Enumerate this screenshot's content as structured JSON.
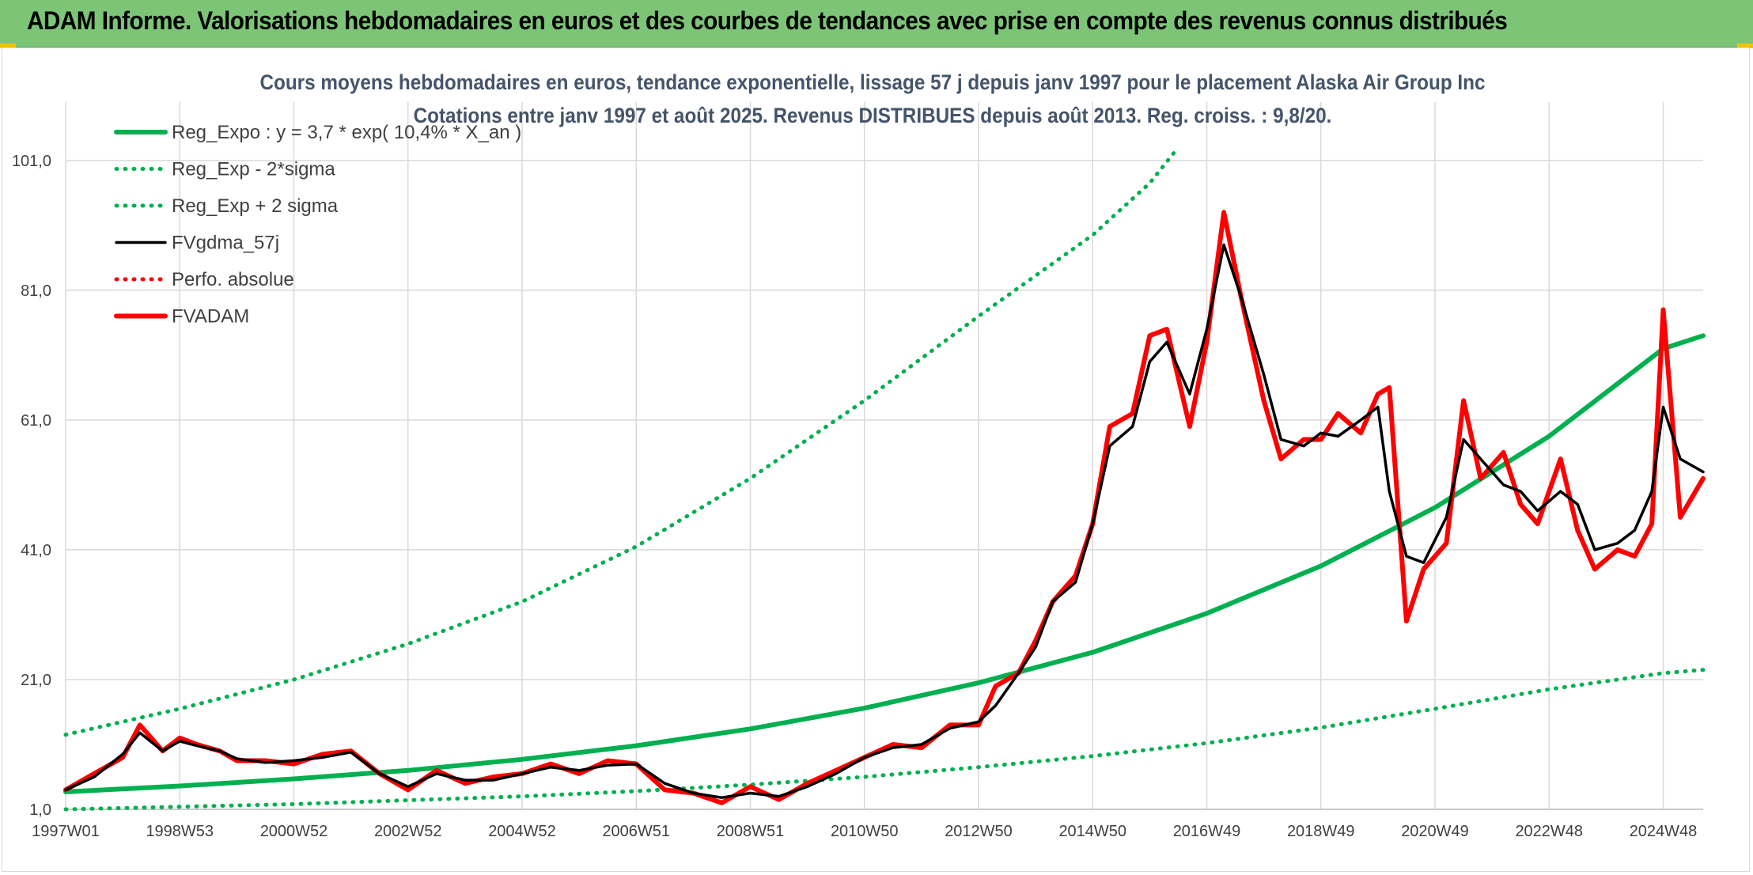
{
  "banner": {
    "title": "ADAM Informe. Valorisations hebdomadaires en euros et des courbes de tendances avec prise en compte des revenus connus distribués"
  },
  "colors": {
    "banner_bg": "#7cc576",
    "trend_green": "#00b050",
    "smooth_black": "#000000",
    "price_red": "#ff0000",
    "title_text": "#44546a",
    "grid": "#d9d9d9"
  },
  "chart_data": {
    "type": "line",
    "title": "Cours moyens hebdomadaires en euros, tendance exponentielle, lissage 57 j depuis janv 1997 pour le placement Alaska Air Group Inc",
    "subtitle": "Cotations entre janv 1997 et août 2025. Revenus DISTRIBUES depuis août 2013. Reg. croiss. : 9,8/20.",
    "xlabel": "",
    "ylabel": "",
    "ylim": [
      1.0,
      110.0
    ],
    "yticks": [
      "1,0",
      "21,0",
      "41,0",
      "61,0",
      "81,0",
      "101,0"
    ],
    "ytick_values": [
      1,
      21,
      41,
      61,
      81,
      101
    ],
    "xlim": [
      1997.0,
      2025.7
    ],
    "x_tick_labels": [
      "1997W01",
      "1998W53",
      "2000W52",
      "2002W52",
      "2004W52",
      "2006W51",
      "2008W51",
      "2010W50",
      "2012W50",
      "2014W50",
      "2016W49",
      "2018W49",
      "2020W49",
      "2022W48",
      "2024W48"
    ],
    "x_tick_values": [
      1997.0,
      1999.0,
      2001.0,
      2003.0,
      2005.0,
      2007.0,
      2009.0,
      2011.0,
      2013.0,
      2015.0,
      2017.0,
      2019.0,
      2021.0,
      2023.0,
      2025.0
    ],
    "grid": "vertical and horizontal",
    "legend_placement": "top-left",
    "legend": [
      {
        "name": "Reg_Expo : y = 3,7 * exp( 10,4% *  X_an )",
        "style": "solid-thick",
        "color": "#00b050"
      },
      {
        "name": "Reg_Exp - 2*sigma",
        "style": "dotted",
        "color": "#00b050"
      },
      {
        "name": "Reg_Exp + 2 sigma",
        "style": "dotted",
        "color": "#00b050"
      },
      {
        "name": "FVgdma_57j",
        "style": "solid",
        "color": "#000000"
      },
      {
        "name": "Perfo. absolue",
        "style": "dotted",
        "color": "#ff0000"
      },
      {
        "name": "FVADAM",
        "style": "solid-thick",
        "color": "#ff0000"
      }
    ],
    "series": [
      {
        "name": "Reg_Expo : y = 3,7 * exp( 10,4% *  X_an )",
        "x": [
          1997.0,
          1999.0,
          2001.0,
          2003.0,
          2005.0,
          2007.0,
          2009.0,
          2011.0,
          2013.0,
          2015.0,
          2017.0,
          2019.0,
          2021.0,
          2023.0,
          2025.0,
          2025.7
        ],
        "values": [
          3.7,
          4.6,
          5.7,
          7.0,
          8.7,
          10.8,
          13.4,
          16.6,
          20.5,
          25.2,
          31.2,
          38.5,
          47.5,
          58.5,
          72.0,
          74.0
        ]
      },
      {
        "name": "Reg_Exp - 2*sigma",
        "x": [
          1997.0,
          1999.0,
          2001.0,
          2003.0,
          2005.0,
          2007.0,
          2009.0,
          2011.0,
          2013.0,
          2015.0,
          2017.0,
          2019.0,
          2021.0,
          2023.0,
          2025.0,
          2025.7
        ],
        "values": [
          1.0,
          1.4,
          1.8,
          2.4,
          3.0,
          3.8,
          4.8,
          6.0,
          7.5,
          9.2,
          11.2,
          13.6,
          16.5,
          19.5,
          22.0,
          22.5
        ]
      },
      {
        "name": "Reg_Exp + 2 sigma",
        "x": [
          1997.0,
          1999.0,
          2001.0,
          2003.0,
          2005.0,
          2007.0,
          2009.0,
          2011.0,
          2013.0,
          2015.0,
          2016.0,
          2016.5
        ],
        "values": [
          12.5,
          16.5,
          21.0,
          26.5,
          33.0,
          41.5,
          52.0,
          64.0,
          77.0,
          89.5,
          97.5,
          103.0
        ]
      },
      {
        "name": "FVgdma_57j",
        "x": [
          1997.0,
          1997.5,
          1998.0,
          1998.3,
          1998.7,
          1999.0,
          1999.3,
          1999.7,
          2000.0,
          2000.5,
          2001.0,
          2001.5,
          2002.0,
          2002.5,
          2003.0,
          2003.5,
          2004.0,
          2004.5,
          2005.0,
          2005.5,
          2006.0,
          2006.5,
          2007.0,
          2007.5,
          2008.0,
          2008.5,
          2009.0,
          2009.5,
          2010.0,
          2010.5,
          2011.0,
          2011.5,
          2012.0,
          2012.5,
          2013.0,
          2013.3,
          2013.7,
          2014.0,
          2014.3,
          2014.7,
          2015.0,
          2015.3,
          2015.7,
          2016.0,
          2016.3,
          2016.7,
          2017.0,
          2017.3,
          2017.6,
          2018.0,
          2018.3,
          2018.7,
          2019.0,
          2019.3,
          2019.7,
          2020.0,
          2020.2,
          2020.5,
          2020.8,
          2021.2,
          2021.5,
          2021.8,
          2022.2,
          2022.5,
          2022.8,
          2023.2,
          2023.5,
          2023.8,
          2024.2,
          2024.5,
          2024.8,
          2025.0,
          2025.3,
          2025.7
        ],
        "values": [
          4.0,
          6.0,
          9.5,
          12.8,
          10.0,
          11.5,
          10.8,
          10.0,
          8.8,
          8.2,
          8.5,
          9.0,
          9.8,
          6.5,
          4.5,
          6.5,
          5.5,
          5.5,
          6.5,
          7.5,
          7.0,
          7.8,
          8.0,
          5.0,
          3.5,
          2.8,
          3.5,
          3.0,
          4.5,
          6.5,
          9.0,
          10.5,
          11.0,
          13.5,
          14.5,
          17.0,
          22.0,
          26.0,
          33.0,
          36.0,
          45.0,
          57.0,
          60.0,
          70.0,
          73.0,
          65.0,
          75.0,
          88.0,
          80.0,
          68.0,
          58.0,
          57.0,
          59.0,
          58.5,
          61.0,
          63.0,
          50.0,
          40.0,
          39.0,
          46.0,
          58.0,
          55.0,
          51.0,
          50.0,
          47.0,
          50.0,
          48.0,
          41.0,
          42.0,
          44.0,
          50.0,
          63.0,
          55.0,
          53.0
        ]
      },
      {
        "name": "FVADAM",
        "x": [
          1997.0,
          1997.5,
          1998.0,
          1998.3,
          1998.7,
          1999.0,
          1999.3,
          1999.7,
          2000.0,
          2000.5,
          2001.0,
          2001.5,
          2002.0,
          2002.5,
          2003.0,
          2003.5,
          2004.0,
          2004.5,
          2005.0,
          2005.5,
          2006.0,
          2006.5,
          2007.0,
          2007.5,
          2008.0,
          2008.5,
          2009.0,
          2009.5,
          2010.0,
          2010.5,
          2011.0,
          2011.5,
          2012.0,
          2012.5,
          2013.0,
          2013.3,
          2013.7,
          2014.0,
          2014.3,
          2014.7,
          2015.0,
          2015.3,
          2015.7,
          2016.0,
          2016.3,
          2016.7,
          2017.0,
          2017.3,
          2017.6,
          2018.0,
          2018.3,
          2018.7,
          2019.0,
          2019.3,
          2019.7,
          2020.0,
          2020.2,
          2020.5,
          2020.8,
          2021.2,
          2021.5,
          2021.8,
          2022.2,
          2022.5,
          2022.8,
          2023.2,
          2023.5,
          2023.8,
          2024.2,
          2024.5,
          2024.8,
          2025.0,
          2025.3,
          2025.7
        ],
        "values": [
          4.0,
          6.5,
          9.0,
          14.0,
          10.0,
          12.0,
          11.0,
          10.0,
          8.5,
          8.5,
          8.0,
          9.5,
          10.0,
          6.5,
          4.0,
          7.0,
          5.0,
          6.0,
          6.5,
          8.0,
          6.5,
          8.5,
          8.0,
          4.0,
          3.5,
          2.0,
          4.5,
          2.5,
          5.0,
          7.0,
          9.0,
          11.0,
          10.5,
          14.0,
          14.0,
          20.0,
          22.0,
          27.0,
          33.0,
          37.0,
          45.0,
          60.0,
          62.0,
          74.0,
          75.0,
          60.0,
          73.0,
          93.0,
          80.0,
          64.0,
          55.0,
          58.0,
          58.0,
          62.0,
          59.0,
          65.0,
          66.0,
          30.0,
          38.0,
          42.0,
          64.0,
          52.0,
          56.0,
          48.0,
          45.0,
          55.0,
          44.0,
          38.0,
          41.0,
          40.0,
          45.0,
          78.0,
          46.0,
          52.0
        ]
      }
    ]
  }
}
